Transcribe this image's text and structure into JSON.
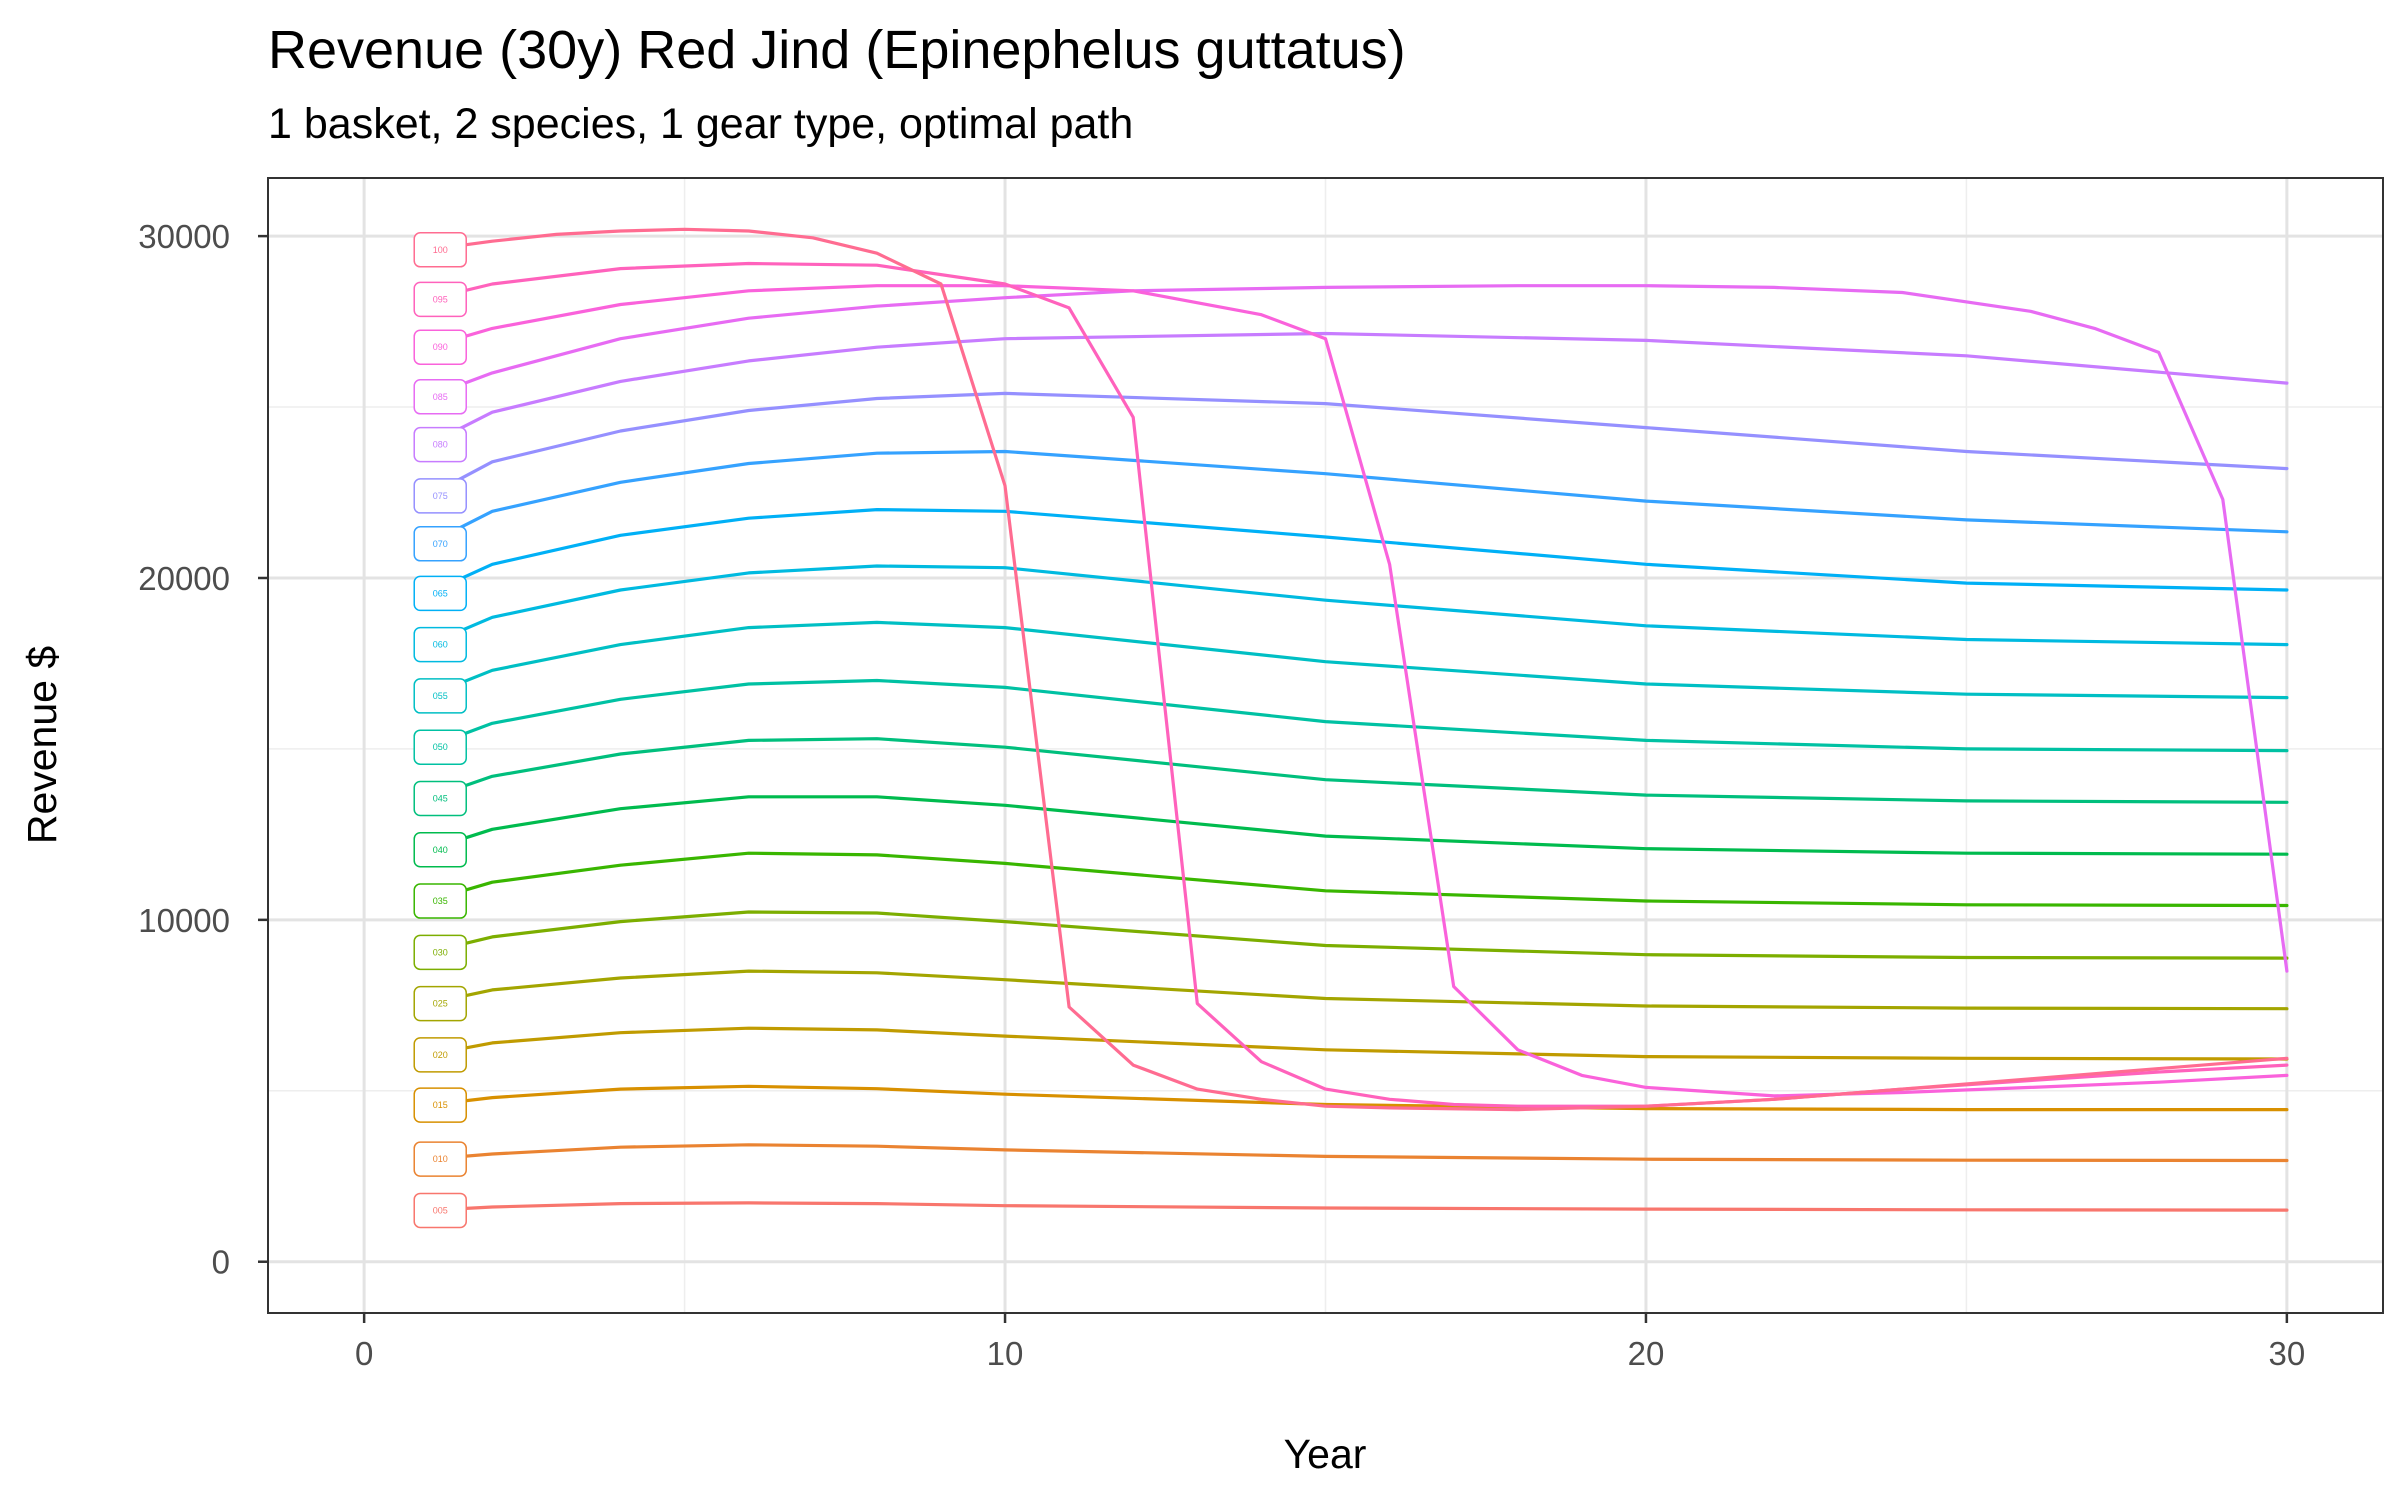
{
  "chart_data": {
    "type": "line",
    "title": "Revenue (30y) Red Jind (Epinephelus guttatus)",
    "subtitle": "1 basket, 2 species, 1 gear type, optimal path",
    "xlabel": "Year",
    "ylabel": "Revenue $",
    "xlim": [
      -1.5,
      31.5
    ],
    "ylim": [
      -1500,
      31700
    ],
    "xticks": [
      0,
      10,
      20,
      30
    ],
    "xtick_labels": [
      "0",
      "10",
      "20",
      "30"
    ],
    "yticks": [
      0,
      10000,
      20000,
      30000
    ],
    "ytick_labels": [
      "0",
      "10000",
      "20000",
      "30000"
    ],
    "x_minor_ticks": [
      5,
      15,
      25
    ],
    "y_minor_ticks": [
      5000,
      15000,
      25000
    ],
    "grid": true,
    "legend": "none",
    "series": [
      {
        "label": "005",
        "color": "#F8766D",
        "x": [
          1,
          2,
          4,
          6,
          8,
          10,
          15,
          20,
          25,
          30
        ],
        "y": [
          1500,
          1600,
          1700,
          1720,
          1700,
          1640,
          1570,
          1540,
          1520,
          1510
        ]
      },
      {
        "label": "010",
        "color": "#EA8331",
        "x": [
          1,
          2,
          4,
          6,
          8,
          10,
          15,
          20,
          25,
          30
        ],
        "y": [
          3000,
          3150,
          3350,
          3420,
          3380,
          3270,
          3080,
          3000,
          2970,
          2960
        ]
      },
      {
        "label": "015",
        "color": "#D89000",
        "x": [
          1,
          2,
          4,
          6,
          8,
          10,
          15,
          20,
          25,
          30
        ],
        "y": [
          4580,
          4800,
          5050,
          5130,
          5060,
          4900,
          4600,
          4480,
          4450,
          4450
        ]
      },
      {
        "label": "020",
        "color": "#C09B00",
        "x": [
          1,
          2,
          4,
          6,
          8,
          10,
          15,
          20,
          25,
          30
        ],
        "y": [
          6050,
          6400,
          6700,
          6830,
          6780,
          6600,
          6200,
          6000,
          5950,
          5930
        ]
      },
      {
        "label": "025",
        "color": "#A3A500",
        "x": [
          1,
          2,
          4,
          6,
          8,
          10,
          15,
          20,
          25,
          30
        ],
        "y": [
          7550,
          7950,
          8300,
          8500,
          8450,
          8250,
          7700,
          7480,
          7420,
          7400
        ]
      },
      {
        "label": "030",
        "color": "#7CAE00",
        "x": [
          1,
          2,
          4,
          6,
          8,
          10,
          15,
          20,
          25,
          30
        ],
        "y": [
          9050,
          9500,
          9950,
          10230,
          10200,
          9950,
          9250,
          8980,
          8900,
          8880
        ]
      },
      {
        "label": "035",
        "color": "#39B600",
        "x": [
          1,
          2,
          4,
          6,
          8,
          10,
          15,
          20,
          25,
          30
        ],
        "y": [
          10550,
          11100,
          11600,
          11950,
          11900,
          11650,
          10850,
          10550,
          10440,
          10420
        ]
      },
      {
        "label": "040",
        "color": "#00BB4E",
        "x": [
          1,
          2,
          4,
          6,
          8,
          10,
          15,
          20,
          25,
          30
        ],
        "y": [
          12050,
          12650,
          13250,
          13600,
          13600,
          13350,
          12450,
          12080,
          11950,
          11920
        ]
      },
      {
        "label": "045",
        "color": "#00BF7D",
        "x": [
          1,
          2,
          4,
          6,
          8,
          10,
          15,
          20,
          25,
          30
        ],
        "y": [
          13550,
          14200,
          14850,
          15250,
          15300,
          15050,
          14100,
          13650,
          13480,
          13440
        ]
      },
      {
        "label": "050",
        "color": "#00C1A3",
        "x": [
          1,
          2,
          4,
          6,
          8,
          10,
          15,
          20,
          25,
          30
        ],
        "y": [
          15050,
          15750,
          16450,
          16900,
          17000,
          16800,
          15800,
          15250,
          15000,
          14950
        ]
      },
      {
        "label": "055",
        "color": "#00BFC4",
        "x": [
          1,
          2,
          4,
          6,
          8,
          10,
          15,
          20,
          25,
          30
        ],
        "y": [
          16550,
          17300,
          18050,
          18550,
          18700,
          18550,
          17550,
          16900,
          16600,
          16500
        ]
      },
      {
        "label": "060",
        "color": "#00BAE0",
        "x": [
          1,
          2,
          4,
          6,
          8,
          10,
          15,
          20,
          25,
          30
        ],
        "y": [
          18050,
          18850,
          19650,
          20150,
          20350,
          20300,
          19350,
          18600,
          18200,
          18050
        ]
      },
      {
        "label": "065",
        "color": "#00B0F6",
        "x": [
          1,
          2,
          4,
          6,
          8,
          10,
          15,
          20,
          25,
          30
        ],
        "y": [
          19550,
          20400,
          21250,
          21750,
          22000,
          21950,
          21200,
          20400,
          19850,
          19650
        ]
      },
      {
        "label": "070",
        "color": "#35A2FF",
        "x": [
          1,
          2,
          4,
          6,
          8,
          10,
          15,
          20,
          25,
          30
        ],
        "y": [
          21000,
          21950,
          22800,
          23350,
          23650,
          23700,
          23050,
          22250,
          21700,
          21350
        ]
      },
      {
        "label": "075",
        "color": "#9590FF",
        "x": [
          1,
          2,
          4,
          6,
          8,
          10,
          15,
          20,
          25,
          30
        ],
        "y": [
          22400,
          23400,
          24300,
          24900,
          25250,
          25400,
          25100,
          24400,
          23700,
          23200
        ]
      },
      {
        "label": "080",
        "color": "#C77CFF",
        "x": [
          1,
          2,
          4,
          6,
          8,
          10,
          15,
          20,
          25,
          30
        ],
        "y": [
          23900,
          24850,
          25750,
          26350,
          26750,
          27000,
          27150,
          26950,
          26500,
          25700
        ]
      },
      {
        "label": "085",
        "color": "#E76BF3",
        "x": [
          1,
          2,
          4,
          6,
          8,
          10,
          12,
          15,
          18,
          20,
          22,
          24,
          26,
          27,
          28,
          29,
          30
        ],
        "y": [
          25300,
          26000,
          27000,
          27600,
          27950,
          28200,
          28400,
          28500,
          28550,
          28550,
          28500,
          28350,
          27800,
          27300,
          26600,
          22300,
          8500
        ]
      },
      {
        "label": "090",
        "color": "#FA62DB",
        "x": [
          1,
          2,
          4,
          6,
          8,
          10,
          12,
          14,
          15,
          16,
          17,
          18,
          19,
          20,
          22,
          24,
          26,
          28,
          30
        ],
        "y": [
          26750,
          27300,
          28000,
          28400,
          28550,
          28550,
          28400,
          27700,
          27000,
          20400,
          8050,
          6200,
          5450,
          5100,
          4850,
          4950,
          5100,
          5250,
          5450
        ]
      },
      {
        "label": "095",
        "color": "#FF62BC",
        "x": [
          1,
          2,
          4,
          6,
          8,
          10,
          11,
          12,
          13,
          14,
          15,
          16,
          17,
          18,
          20,
          22,
          24,
          26,
          28,
          30
        ],
        "y": [
          28150,
          28600,
          29050,
          29200,
          29150,
          28600,
          27900,
          24700,
          7550,
          5850,
          5050,
          4750,
          4600,
          4550,
          4550,
          4750,
          5050,
          5300,
          5550,
          5750
        ]
      },
      {
        "label": "100",
        "color": "#FF6C91",
        "x": [
          1,
          2,
          3,
          4,
          5,
          6,
          7,
          8,
          9,
          10,
          11,
          12,
          13,
          14,
          15,
          16,
          18,
          20,
          22,
          24,
          26,
          28,
          30
        ],
        "y": [
          29600,
          29850,
          30050,
          30150,
          30200,
          30150,
          29950,
          29500,
          28600,
          22700,
          7450,
          5750,
          5050,
          4750,
          4550,
          4500,
          4450,
          4550,
          4750,
          5050,
          5350,
          5650,
          5950
        ]
      }
    ]
  }
}
